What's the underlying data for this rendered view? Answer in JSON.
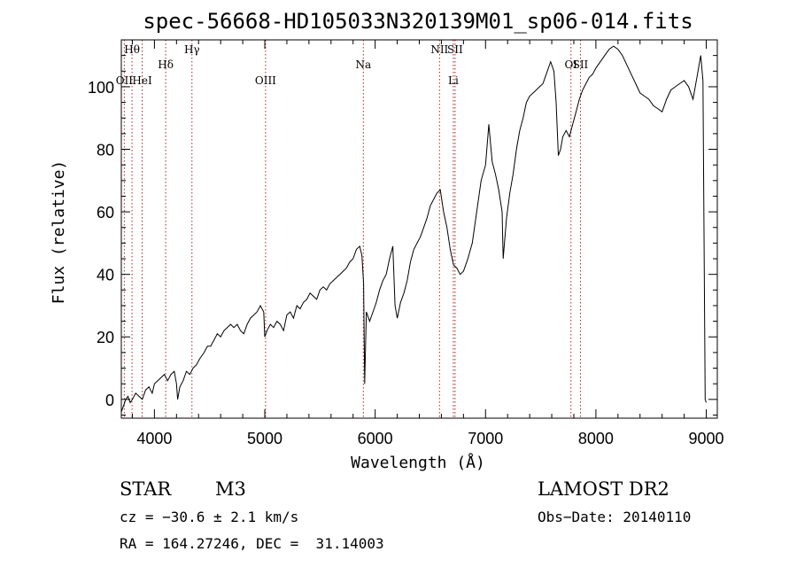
{
  "chart_data": {
    "type": "line",
    "title": "spec-56668-HD105033N320139M01_sp06-014.fits",
    "xlabel": "Wavelength (Å)",
    "ylabel": "Flux (relative)",
    "xlim": [
      3700,
      9100
    ],
    "ylim": [
      -6,
      115
    ],
    "xticks": [
      4000,
      5000,
      6000,
      7000,
      8000,
      9000
    ],
    "yticks": [
      0,
      20,
      40,
      60,
      80,
      100
    ],
    "grid": false,
    "series": [
      {
        "x": [
          3700,
          3720,
          3740,
          3760,
          3780,
          3800,
          3830,
          3860,
          3890,
          3920,
          3950,
          3980,
          4000,
          4030,
          4060,
          4090,
          4120,
          4150,
          4180,
          4200,
          4210,
          4230,
          4260,
          4290,
          4320,
          4350,
          4380,
          4410,
          4450,
          4480,
          4510,
          4540,
          4570,
          4600,
          4630,
          4660,
          4690,
          4720,
          4750,
          4780,
          4810,
          4840,
          4870,
          4900,
          4930,
          4960,
          4990,
          5000,
          5020,
          5050,
          5080,
          5110,
          5140,
          5170,
          5200,
          5230,
          5260,
          5290,
          5320,
          5350,
          5380,
          5410,
          5440,
          5470,
          5500,
          5530,
          5560,
          5590,
          5620,
          5650,
          5680,
          5710,
          5740,
          5770,
          5800,
          5830,
          5860,
          5880,
          5895,
          5905,
          5920,
          5950,
          5980,
          6010,
          6040,
          6070,
          6100,
          6130,
          6160,
          6180,
          6200,
          6230,
          6260,
          6290,
          6320,
          6350,
          6380,
          6410,
          6440,
          6470,
          6500,
          6530,
          6560,
          6590,
          6620,
          6650,
          6680,
          6710,
          6740,
          6770,
          6800,
          6840,
          6880,
          6920,
          6960,
          7000,
          7030,
          7060,
          7090,
          7120,
          7150,
          7160,
          7190,
          7220,
          7250,
          7280,
          7310,
          7340,
          7370,
          7400,
          7430,
          7460,
          7490,
          7520,
          7550,
          7590,
          7620,
          7640,
          7660,
          7680,
          7700,
          7730,
          7760,
          7790,
          7820,
          7850,
          7880,
          7910,
          7940,
          7970,
          8000,
          8040,
          8080,
          8120,
          8160,
          8200,
          8240,
          8280,
          8320,
          8360,
          8400,
          8440,
          8480,
          8520,
          8560,
          8600,
          8640,
          8680,
          8720,
          8760,
          8800,
          8840,
          8880,
          8920,
          8950,
          8970,
          8990,
          9000
        ],
        "y": [
          -4,
          -2,
          0,
          1,
          -1,
          0,
          2,
          1,
          0,
          3,
          4,
          2,
          5,
          6,
          7,
          8,
          6,
          8,
          9,
          5,
          0,
          4,
          6,
          9,
          8,
          10,
          11,
          13,
          15,
          17,
          17,
          19,
          21,
          20,
          22,
          23,
          24,
          23,
          24,
          22,
          21,
          24,
          26,
          27,
          28,
          30,
          28,
          20,
          22,
          24,
          23,
          25,
          24,
          22,
          27,
          28,
          26,
          30,
          29,
          31,
          32,
          34,
          33,
          32,
          35,
          36,
          35,
          37,
          38,
          39,
          40,
          41,
          42,
          44,
          45,
          48,
          49,
          46,
          37,
          5,
          28,
          25,
          28,
          31,
          35,
          38,
          40,
          45,
          49,
          30,
          26,
          31,
          34,
          38,
          44,
          48,
          50,
          52,
          55,
          58,
          62,
          64,
          66,
          67,
          60,
          55,
          48,
          43,
          42,
          40,
          41,
          45,
          50,
          60,
          70,
          75,
          88,
          76,
          72,
          67,
          60,
          45,
          58,
          66,
          72,
          80,
          86,
          90,
          95,
          97,
          98,
          99,
          100,
          101,
          104,
          108,
          105,
          95,
          78,
          80,
          84,
          86,
          84,
          88,
          92,
          96,
          99,
          101,
          103,
          104,
          106,
          108,
          110,
          112,
          113,
          112,
          110,
          107,
          104,
          101,
          98,
          97,
          96,
          94,
          93,
          92,
          96,
          99,
          100,
          101,
          102,
          100,
          96,
          104,
          110,
          102,
          0,
          -1
        ]
      }
    ],
    "line_markers": [
      {
        "label": "Hθ",
        "x": 3797,
        "row": 1
      },
      {
        "label": "OII",
        "x": 3727,
        "row": 2
      },
      {
        "label": "HeI",
        "x": 3889,
        "row": 2
      },
      {
        "label": "Hδ",
        "x": 4102,
        "row": 1.5
      },
      {
        "label": "Hγ",
        "x": 4340,
        "row": 1
      },
      {
        "label": "OIII",
        "x": 5007,
        "row": 2
      },
      {
        "label": "Na",
        "x": 5893,
        "row": 1.5
      },
      {
        "label": "NII",
        "x": 6583,
        "row": 1
      },
      {
        "label": "SII",
        "x": 6724,
        "row": 1
      },
      {
        "label": "Li",
        "x": 6708,
        "row": 2
      },
      {
        "label": "OI",
        "x": 7774,
        "row": 1.5
      },
      {
        "label": "SII",
        "x": 7860,
        "row": 1.5
      }
    ]
  },
  "info": {
    "class_label": "STAR",
    "subclass": "M3",
    "survey": "LAMOST DR2",
    "cz": "cz = −30.6 ± 2.1 km/s",
    "obs_date": "Obs−Date: 20140110",
    "coords": "RA = 164.27246, DEC =  31.14003"
  },
  "colors": {
    "spectrum": "#000000",
    "marker": "#b22222"
  }
}
